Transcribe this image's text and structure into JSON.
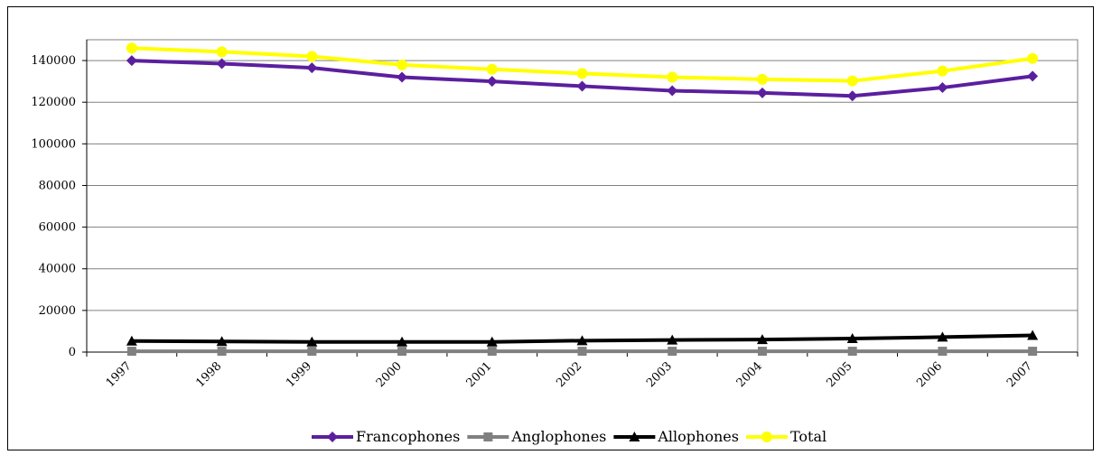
{
  "chart_data": {
    "type": "line",
    "title": "",
    "xlabel": "",
    "ylabel": "",
    "x": [
      "1997",
      "1998",
      "1999",
      "2000",
      "2001",
      "2002",
      "2003",
      "2004",
      "2005",
      "2006",
      "2007"
    ],
    "ylim": [
      0,
      150000
    ],
    "yticks": [
      0,
      20000,
      40000,
      60000,
      80000,
      100000,
      120000,
      140000
    ],
    "grid": true,
    "legend_position": "bottom",
    "series": [
      {
        "name": "Francophones",
        "color": "#5b1f9e",
        "marker": "diamond",
        "values": [
          140000,
          138500,
          136500,
          132000,
          130000,
          127700,
          125500,
          124500,
          123000,
          127000,
          132500
        ]
      },
      {
        "name": "Anglophones",
        "color": "#808080",
        "marker": "square",
        "values": [
          400,
          400,
          400,
          400,
          400,
          400,
          400,
          400,
          400,
          400,
          400
        ]
      },
      {
        "name": "Allophones",
        "color": "#000000",
        "marker": "triangle",
        "values": [
          5300,
          5100,
          4900,
          4900,
          4900,
          5500,
          5800,
          6000,
          6500,
          7200,
          8000
        ]
      },
      {
        "name": "Total",
        "color": "#ffff00",
        "marker": "circle",
        "values": [
          146000,
          144200,
          142000,
          137900,
          135800,
          133800,
          132000,
          131000,
          130200,
          135000,
          141000
        ]
      }
    ]
  }
}
